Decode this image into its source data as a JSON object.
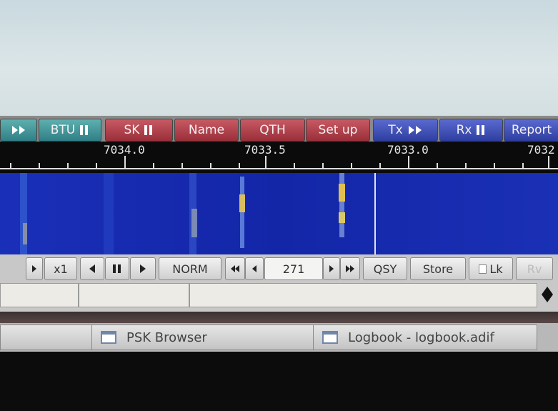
{
  "macro_buttons": [
    "BTU",
    "SK",
    "Name",
    "QTH",
    "Set up",
    "Tx",
    "Rx",
    "Report"
  ],
  "scale_labels": [
    "7034.0",
    "7033.5",
    "7033.0",
    "7032"
  ],
  "controls": {
    "multiplier": "x1",
    "mode": "NORM",
    "offset": "271",
    "qsy": "QSY",
    "store": "Store",
    "lock": "Lk",
    "reverse": "Rv"
  },
  "taskbar": [
    "PSK Browser",
    "Logbook - logbook.adif"
  ]
}
